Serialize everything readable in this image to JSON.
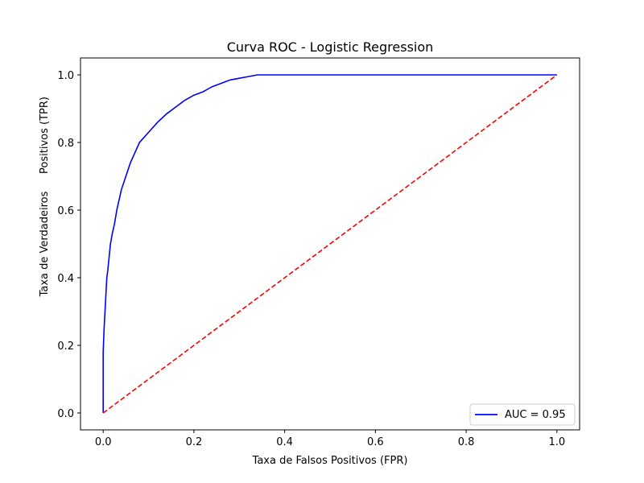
{
  "chart_data": {
    "type": "line",
    "title": "Curva ROC - Logistic Regression",
    "xlabel": "Taxa de Falsos Positivos (FPR)",
    "ylabel_line1": "Taxa de Verdadeiros",
    "ylabel_line2": "Positivos (TPR)",
    "xlim": [
      -0.05,
      1.05
    ],
    "ylim": [
      -0.05,
      1.05
    ],
    "xticks": [
      0.0,
      0.2,
      0.4,
      0.6,
      0.8,
      1.0
    ],
    "yticks": [
      0.0,
      0.2,
      0.4,
      0.6,
      0.8,
      1.0
    ],
    "xtick_labels": [
      "0.0",
      "0.2",
      "0.4",
      "0.6",
      "0.8",
      "1.0"
    ],
    "ytick_labels": [
      "0.0",
      "0.2",
      "0.4",
      "0.6",
      "0.8",
      "1.0"
    ],
    "grid": false,
    "legend_position": "lower-right",
    "series": [
      {
        "name": "AUC = 0.95",
        "color": "#0000ff",
        "style": "solid",
        "x": [
          0.0,
          0.0,
          0.002,
          0.004,
          0.006,
          0.008,
          0.01,
          0.013,
          0.016,
          0.02,
          0.025,
          0.03,
          0.035,
          0.04,
          0.05,
          0.06,
          0.07,
          0.08,
          0.09,
          0.1,
          0.12,
          0.14,
          0.16,
          0.18,
          0.2,
          0.22,
          0.24,
          0.26,
          0.28,
          0.3,
          0.32,
          0.34,
          0.4,
          0.5,
          0.6,
          0.7,
          0.8,
          0.9,
          1.0
        ],
        "y": [
          0.0,
          0.18,
          0.25,
          0.3,
          0.35,
          0.4,
          0.42,
          0.46,
          0.5,
          0.53,
          0.56,
          0.6,
          0.63,
          0.66,
          0.7,
          0.74,
          0.77,
          0.8,
          0.815,
          0.83,
          0.86,
          0.885,
          0.905,
          0.925,
          0.94,
          0.95,
          0.965,
          0.975,
          0.985,
          0.99,
          0.995,
          1.0,
          1.0,
          1.0,
          1.0,
          1.0,
          1.0,
          1.0,
          1.0
        ]
      },
      {
        "name": "",
        "color": "#ff0000",
        "style": "dashed",
        "x": [
          0.0,
          1.0
        ],
        "y": [
          0.0,
          1.0
        ]
      }
    ]
  }
}
